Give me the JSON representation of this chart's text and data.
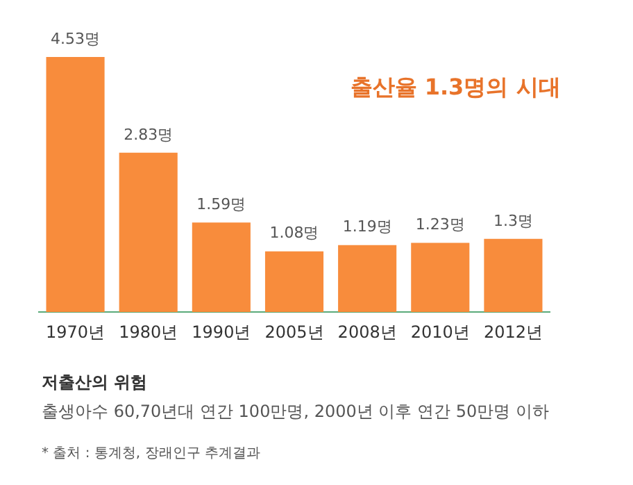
{
  "chart_data": {
    "type": "bar",
    "title": "출산율 1.3명의 시대",
    "categories": [
      "1970년",
      "1980년",
      "1990년",
      "2005년",
      "2008년",
      "2010년",
      "2012년"
    ],
    "values": [
      4.53,
      2.83,
      1.59,
      1.08,
      1.19,
      1.23,
      1.3
    ],
    "value_labels": [
      "4.53명",
      "2.83명",
      "1.59명",
      "1.08명",
      "1.19명",
      "1.23명",
      "1.3명"
    ],
    "color": "#f88c3c",
    "grid": false,
    "legend": false,
    "tick_labels": "x",
    "subtitle": "저출산의 위험",
    "annotations": [
      "출생아수 60,70년대 연간 100만명, 2000년 이후 연간 50만명 이하",
      "* 출처 : 통계청, 장래인구 추계결과"
    ]
  }
}
